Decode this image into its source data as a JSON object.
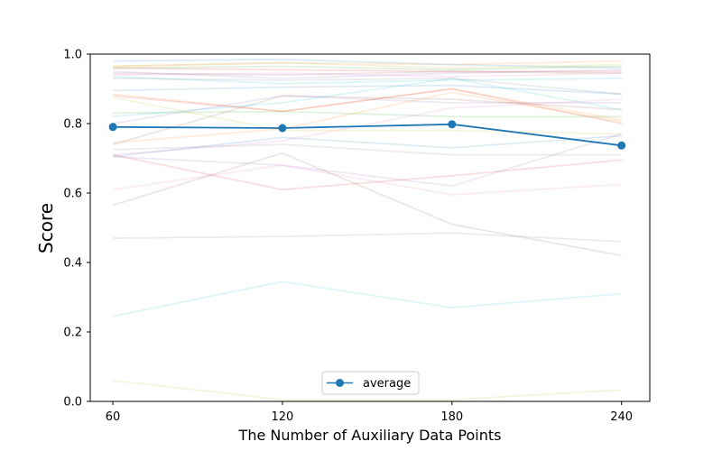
{
  "chart_data": {
    "type": "line",
    "title": "",
    "xlabel": "The Number of Auxiliary Data Points",
    "ylabel": "Score",
    "x": [
      60,
      120,
      180,
      240
    ],
    "x_tick_labels": [
      "60",
      "120",
      "180",
      "240"
    ],
    "y_tick_labels": [
      "0.0",
      "0.2",
      "0.4",
      "0.6",
      "0.8",
      "1.0"
    ],
    "xlim": [
      52,
      250
    ],
    "ylim": [
      0,
      1
    ],
    "grid": false,
    "legend": {
      "position": "bottom-center",
      "entries": [
        "average"
      ]
    },
    "average": {
      "name": "average",
      "color": "#1f77b4",
      "values": [
        0.79,
        0.787,
        0.798,
        0.737
      ]
    },
    "background_series": [
      {
        "color": "#1f77b4",
        "values": [
          0.98,
          0.985,
          0.97,
          0.96
        ]
      },
      {
        "color": "#ff7f0e",
        "values": [
          0.965,
          0.975,
          0.97,
          0.98
        ]
      },
      {
        "color": "#2ca02c",
        "values": [
          0.96,
          0.965,
          0.955,
          0.965
        ]
      },
      {
        "color": "#d62728",
        "values": [
          0.96,
          0.955,
          0.95,
          0.95
        ]
      },
      {
        "color": "#9467bd",
        "values": [
          0.95,
          0.93,
          0.945,
          0.955
        ]
      },
      {
        "color": "#8c564b",
        "values": [
          0.945,
          0.94,
          0.95,
          0.945
        ]
      },
      {
        "color": "#e377c2",
        "values": [
          0.94,
          0.945,
          0.935,
          0.945
        ]
      },
      {
        "color": "#7f7f7f",
        "values": [
          0.93,
          0.925,
          0.93,
          0.885
        ]
      },
      {
        "color": "#bcbd22",
        "values": [
          0.965,
          0.975,
          0.96,
          0.97
        ]
      },
      {
        "color": "#17becf",
        "values": [
          0.935,
          0.915,
          0.925,
          0.93
        ]
      },
      {
        "color": "#1f77b4",
        "values": [
          0.895,
          0.905,
          0.91,
          0.885
        ]
      },
      {
        "color": "#ff7f0e",
        "values": [
          0.885,
          0.835,
          0.9,
          0.81
        ]
      },
      {
        "color": "#2ca02c",
        "values": [
          0.83,
          0.835,
          0.82,
          0.82
        ]
      },
      {
        "color": "#d62728",
        "values": [
          0.88,
          0.835,
          0.9,
          0.8
        ]
      },
      {
        "color": "#9467bd",
        "values": [
          0.8,
          0.88,
          0.86,
          0.86
        ]
      },
      {
        "color": "#8c564b",
        "values": [
          0.74,
          0.88,
          0.87,
          0.84
        ]
      },
      {
        "color": "#e377c2",
        "values": [
          0.71,
          0.75,
          0.845,
          0.87
        ]
      },
      {
        "color": "#7f7f7f",
        "values": [
          0.725,
          0.74,
          0.71,
          0.71
        ]
      },
      {
        "color": "#bcbd22",
        "values": [
          0.875,
          0.78,
          0.78,
          0.77
        ]
      },
      {
        "color": "#17becf",
        "values": [
          0.82,
          0.86,
          0.93,
          0.84
        ]
      },
      {
        "color": "#1f77b4",
        "values": [
          0.705,
          0.76,
          0.73,
          0.765
        ]
      },
      {
        "color": "#ff7f0e",
        "values": [
          0.745,
          0.785,
          0.89,
          0.805
        ]
      },
      {
        "color": "#d62728",
        "values": [
          0.71,
          0.61,
          0.65,
          0.695
        ]
      },
      {
        "color": "#9467bd",
        "values": [
          0.705,
          0.68,
          0.62,
          0.77
        ]
      },
      {
        "color": "#8c564b",
        "values": [
          0.565,
          0.715,
          0.51,
          0.42
        ]
      },
      {
        "color": "#e377c2",
        "values": [
          0.61,
          0.68,
          0.595,
          0.625
        ]
      },
      {
        "color": "#7f7f7f",
        "values": [
          0.47,
          0.475,
          0.485,
          0.46
        ]
      },
      {
        "color": "#17becf",
        "values": [
          0.245,
          0.345,
          0.27,
          0.31
        ]
      },
      {
        "color": "#bcbd22",
        "values": [
          0.06,
          0.005,
          0.005,
          0.033
        ]
      }
    ]
  }
}
